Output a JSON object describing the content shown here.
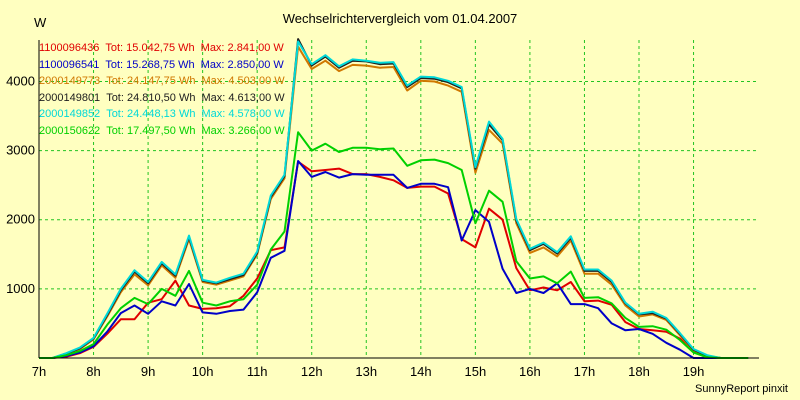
{
  "chart_data": {
    "type": "line",
    "title": "Wechselrichtervergleich vom 01.04.2007",
    "ylabel": "W",
    "footer": "SunnyReport pinxit",
    "ylim": [
      0,
      4600
    ],
    "xlim": [
      7,
      20.2
    ],
    "yticks": [
      1000,
      2000,
      3000,
      4000
    ],
    "xticks": [
      {
        "x": 7,
        "label": "7h"
      },
      {
        "x": 8,
        "label": "8h"
      },
      {
        "x": 9,
        "label": "9h"
      },
      {
        "x": 10,
        "label": "10h"
      },
      {
        "x": 11,
        "label": "11h"
      },
      {
        "x": 12,
        "label": "12h"
      },
      {
        "x": 13,
        "label": "13h"
      },
      {
        "x": 14,
        "label": "14h"
      },
      {
        "x": 15,
        "label": "15h"
      },
      {
        "x": 16,
        "label": "16h"
      },
      {
        "x": 17,
        "label": "17h"
      },
      {
        "x": 18,
        "label": "18h"
      },
      {
        "x": 19,
        "label": "19h"
      }
    ],
    "grid": true,
    "legend_position": "top-left",
    "x": [
      7.0,
      7.25,
      7.5,
      7.75,
      8.0,
      8.25,
      8.5,
      8.75,
      9.0,
      9.25,
      9.5,
      9.75,
      10.0,
      10.25,
      10.5,
      10.75,
      11.0,
      11.25,
      11.5,
      11.75,
      12.0,
      12.25,
      12.5,
      12.75,
      13.0,
      13.25,
      13.5,
      13.75,
      14.0,
      14.25,
      14.5,
      14.75,
      15.0,
      15.25,
      15.5,
      15.75,
      16.0,
      16.25,
      16.5,
      16.75,
      17.0,
      17.25,
      17.5,
      17.75,
      18.0,
      18.25,
      18.5,
      18.75,
      19.0,
      19.25,
      19.5,
      19.75,
      20.0
    ],
    "series": [
      {
        "name": "1100096436",
        "tot": "15.042,75",
        "max": "2.841,00",
        "color": "#e00000",
        "values": [
          0,
          0,
          20,
          70,
          160,
          350,
          560,
          560,
          800,
          850,
          1120,
          760,
          710,
          720,
          750,
          900,
          1150,
          1560,
          1600,
          2840,
          2700,
          2720,
          2740,
          2660,
          2660,
          2620,
          2570,
          2460,
          2480,
          2480,
          2380,
          1720,
          1600,
          2160,
          2000,
          1300,
          980,
          1020,
          980,
          1100,
          820,
          830,
          770,
          520,
          420,
          400,
          380,
          280,
          100,
          0,
          0,
          0,
          0
        ]
      },
      {
        "name": "1100096541",
        "tot": "15.268,75",
        "max": "2.850,00",
        "color": "#0000c8",
        "values": [
          0,
          0,
          30,
          80,
          170,
          380,
          650,
          760,
          640,
          820,
          760,
          1070,
          660,
          640,
          680,
          700,
          950,
          1450,
          1550,
          2850,
          2620,
          2690,
          2610,
          2660,
          2650,
          2650,
          2650,
          2460,
          2520,
          2520,
          2470,
          1700,
          2140,
          1970,
          1290,
          940,
          1000,
          940,
          1080,
          780,
          780,
          720,
          500,
          400,
          420,
          350,
          220,
          120,
          0,
          0,
          0,
          0,
          0
        ]
      },
      {
        "name": "2000149773",
        "tot": "24.147,75",
        "max": "4.503,00",
        "color": "#d07800",
        "values": [
          0,
          0,
          60,
          130,
          270,
          600,
          950,
          1210,
          1050,
          1340,
          1160,
          1720,
          1100,
          1060,
          1120,
          1180,
          1500,
          2300,
          2600,
          4503,
          4180,
          4300,
          4150,
          4240,
          4230,
          4200,
          4210,
          3870,
          4010,
          4000,
          3940,
          3850,
          2680,
          3300,
          3100,
          1950,
          1520,
          1600,
          1470,
          1700,
          1220,
          1220,
          1060,
          760,
          600,
          630,
          550,
          330,
          100,
          20,
          0,
          0,
          0
        ]
      },
      {
        "name": "2000149801",
        "tot": "24.810,50",
        "max": "4.613,00",
        "color": "#202020",
        "values": [
          0,
          0,
          65,
          140,
          280,
          620,
          980,
          1250,
          1080,
          1370,
          1190,
          1750,
          1120,
          1080,
          1140,
          1200,
          1520,
          2330,
          2630,
          4613,
          4230,
          4360,
          4200,
          4300,
          4290,
          4250,
          4260,
          3920,
          4050,
          4040,
          3990,
          3900,
          2740,
          3380,
          3150,
          1990,
          1560,
          1650,
          1510,
          1740,
          1260,
          1260,
          1100,
          790,
          630,
          650,
          570,
          350,
          120,
          30,
          0,
          0,
          0
        ]
      },
      {
        "name": "2000149852",
        "tot": "24.448,13",
        "max": "4.578,00",
        "color": "#00d8d8",
        "values": [
          0,
          0,
          70,
          150,
          290,
          640,
          1000,
          1270,
          1100,
          1390,
          1210,
          1770,
          1130,
          1090,
          1160,
          1220,
          1540,
          2350,
          2650,
          4578,
          4250,
          4380,
          4220,
          4320,
          4300,
          4270,
          4280,
          3940,
          4070,
          4060,
          4010,
          3920,
          2760,
          3420,
          3170,
          2010,
          1580,
          1670,
          1530,
          1760,
          1280,
          1280,
          1120,
          800,
          640,
          670,
          580,
          360,
          130,
          40,
          0,
          0,
          0
        ]
      },
      {
        "name": "2000150622",
        "tot": "17.497,50",
        "max": "3.266,00",
        "color": "#00d000",
        "values": [
          0,
          0,
          40,
          100,
          200,
          480,
          720,
          870,
          780,
          1000,
          900,
          1260,
          800,
          760,
          820,
          850,
          1060,
          1570,
          1830,
          3266,
          3000,
          3100,
          2980,
          3040,
          3040,
          3020,
          3030,
          2780,
          2860,
          2870,
          2820,
          2720,
          1950,
          2420,
          2260,
          1400,
          1150,
          1180,
          1080,
          1250,
          870,
          880,
          790,
          580,
          450,
          460,
          410,
          260,
          80,
          10,
          0,
          0,
          0
        ]
      }
    ]
  }
}
